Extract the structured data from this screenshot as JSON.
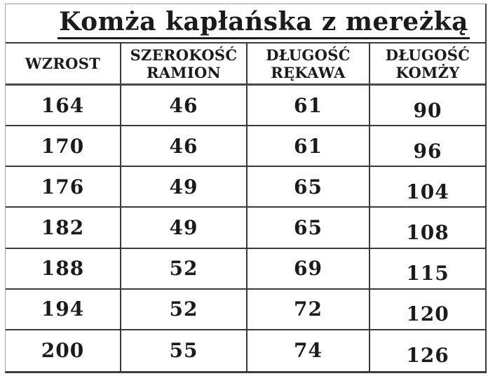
{
  "title": "Komża kapłańska z mereżką",
  "table": {
    "headers": [
      "WZROST",
      "SZEROKOŚĆ\nRAMION",
      "DŁUGOŚĆ\nRĘKAWA",
      "DŁUGOŚĆ\nKOMŻY"
    ],
    "rows": [
      [
        "164",
        "46",
        "61",
        "90"
      ],
      [
        "170",
        "46",
        "61",
        "96"
      ],
      [
        "176",
        "49",
        "65",
        "104"
      ],
      [
        "182",
        "49",
        "65",
        "108"
      ],
      [
        "188",
        "52",
        "69",
        "115"
      ],
      [
        "194",
        "52",
        "72",
        "120"
      ],
      [
        "200",
        "55",
        "74",
        "126"
      ]
    ]
  },
  "colors": {
    "grid_line": "#3a3a3a",
    "outer_border_light": "#9c9c9c",
    "outer_border_dark": "#3c3c3c",
    "text": "#1b1b1b",
    "background": "#ffffff"
  }
}
